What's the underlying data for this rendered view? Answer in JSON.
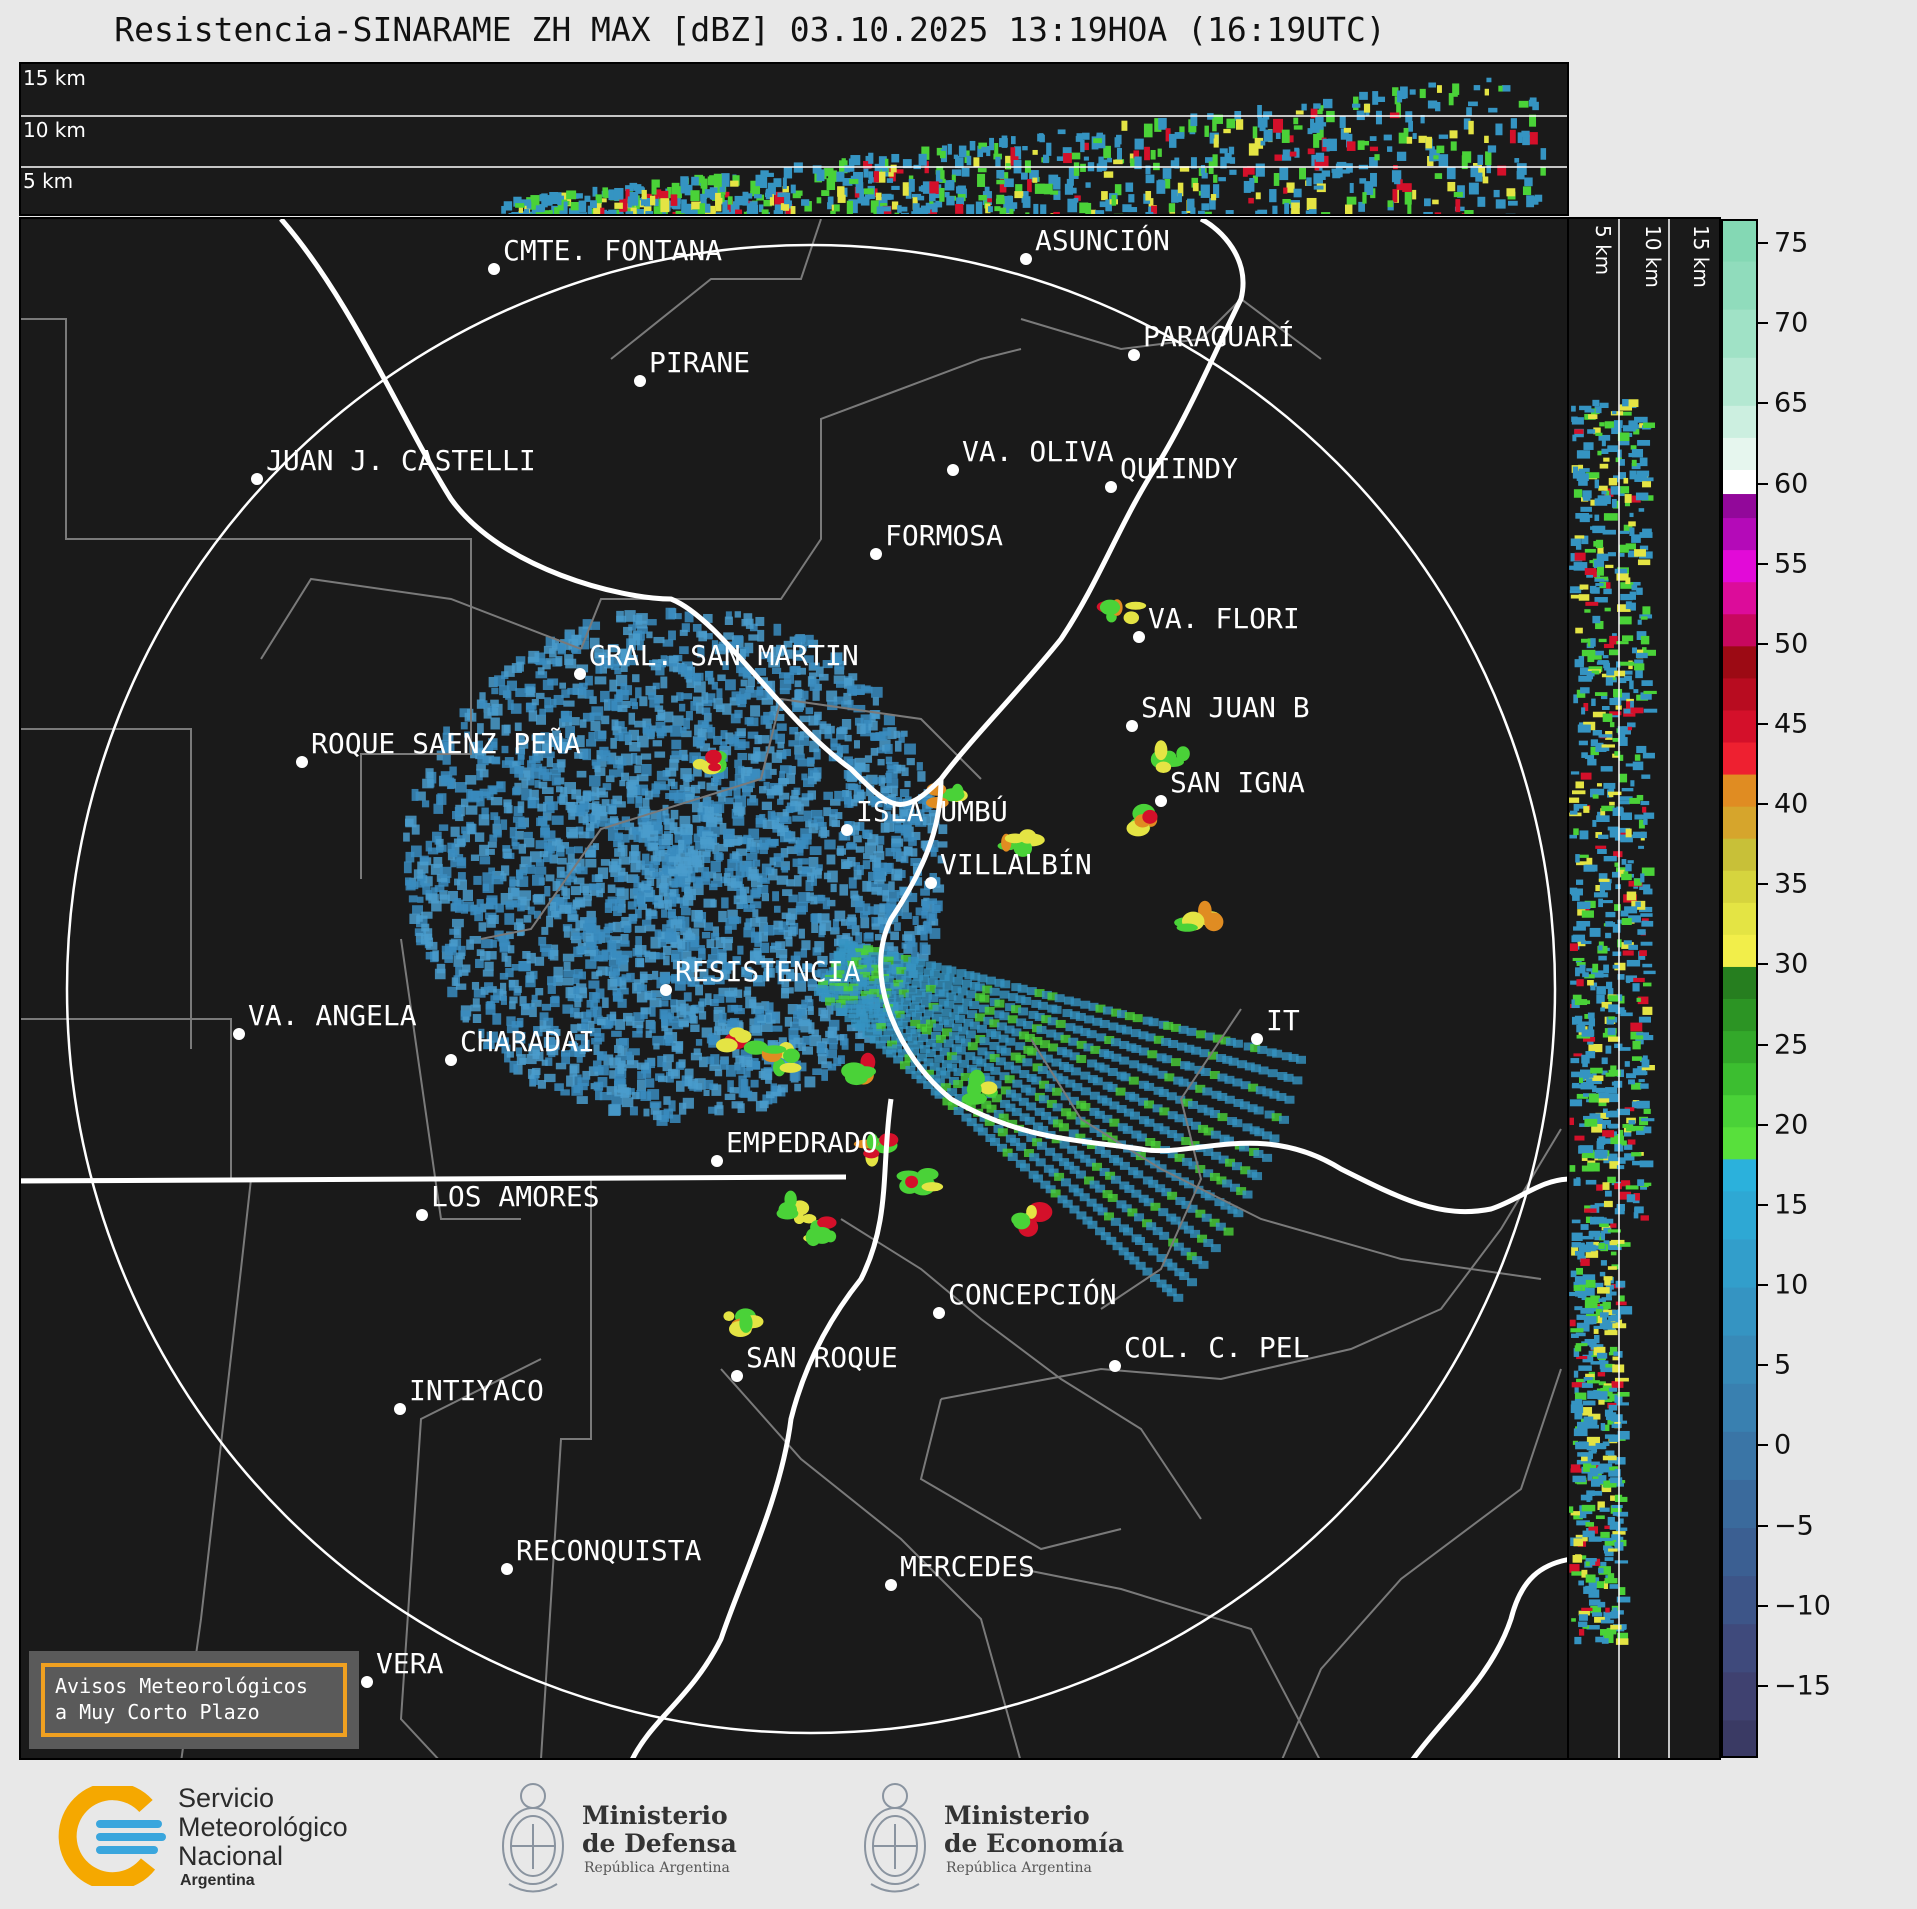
{
  "title": "Resistencia-SINARAME ZH MAX [dBZ] 03.10.2025 13:19HOA (16:19UTC)",
  "top_panel": {
    "height_labels": [
      "15 km",
      "10 km",
      "5 km"
    ]
  },
  "side_panel": {
    "height_labels": [
      "5 km",
      "10 km",
      "15 km"
    ]
  },
  "colorbar": {
    "unit": "dBZ",
    "ticks": [
      "75",
      "70",
      "65",
      "60",
      "55",
      "50",
      "45",
      "40",
      "35",
      "30",
      "25",
      "20",
      "15",
      "10",
      "5",
      "0",
      "−5",
      "−10",
      "−15"
    ],
    "range": [
      -19.5,
      76.5
    ]
  },
  "cities": [
    {
      "name": "CMTE. FONTANA"
    },
    {
      "name": "ASUNCIÓN"
    },
    {
      "name": "PIRANE"
    },
    {
      "name": "PARAGUARÍ"
    },
    {
      "name": "JUAN J. CASTELLI"
    },
    {
      "name": "VA. OLIVA"
    },
    {
      "name": "QUIINDY"
    },
    {
      "name": "FORMOSA"
    },
    {
      "name": "VA. FLORI"
    },
    {
      "name": "GRAL. SAN MARTIN"
    },
    {
      "name": "SAN JUAN B"
    },
    {
      "name": "ROQUE SAENZ PEÑA"
    },
    {
      "name": "SAN IGNA"
    },
    {
      "name": "ISLA UMBÚ"
    },
    {
      "name": "VILLALBÍN"
    },
    {
      "name": "RESISTENCIA"
    },
    {
      "name": "VA. ANGELA"
    },
    {
      "name": "CHARADAI"
    },
    {
      "name": "IT"
    },
    {
      "name": "EMPEDRADO"
    },
    {
      "name": "LOS AMORES"
    },
    {
      "name": "CONCEPCIÓN"
    },
    {
      "name": "COL. C. PEL"
    },
    {
      "name": "SAN ROQUE"
    },
    {
      "name": "INTIYACO"
    },
    {
      "name": "RECONQUISTA"
    },
    {
      "name": "MERCEDES"
    },
    {
      "name": "VERA"
    }
  ],
  "avisos": {
    "text": "Avisos Meteorológicos\na Muy Corto Plazo"
  },
  "footer": {
    "smn": {
      "line1": "Servicio",
      "line2": "Meteorológico",
      "line3": "Nacional",
      "line4": "Argentina"
    },
    "defensa": {
      "line1": "Ministerio",
      "line2": "de Defensa",
      "sub": "República Argentina"
    },
    "economia": {
      "line1": "Ministerio",
      "line2": "de Economía",
      "sub": "República Argentina"
    }
  },
  "colors": {
    "background": "#1a1a1a",
    "page": "#e8e8e8",
    "avisos_border": "#f0a020",
    "smn_yellow": "#f5a800",
    "smn_blue": "#3aa6dd"
  }
}
